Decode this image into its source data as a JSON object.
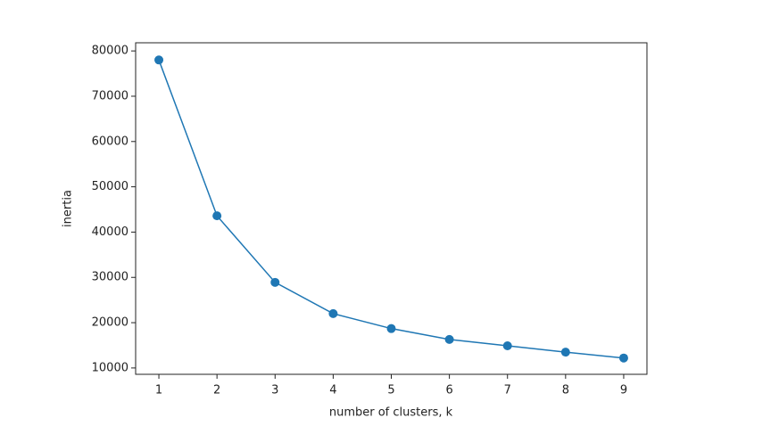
{
  "chart_data": {
    "type": "line",
    "x_label": "number of clusters, k",
    "y_label": "inertia",
    "x": [
      1,
      2,
      3,
      4,
      5,
      6,
      7,
      8,
      9
    ],
    "series": [
      {
        "color": "#1f77b4",
        "values": [
          78000,
          43600,
          28900,
          22000,
          18700,
          16300,
          14900,
          13500,
          12200
        ]
      }
    ],
    "xlim": [
      0.6,
      9.4
    ],
    "xticks": [
      1,
      2,
      3,
      4,
      5,
      6,
      7,
      8,
      9
    ],
    "ylim": [
      8600,
      81800
    ],
    "yticks": [
      10000,
      20000,
      30000,
      40000,
      50000,
      60000,
      70000,
      80000
    ],
    "markers": true
  }
}
